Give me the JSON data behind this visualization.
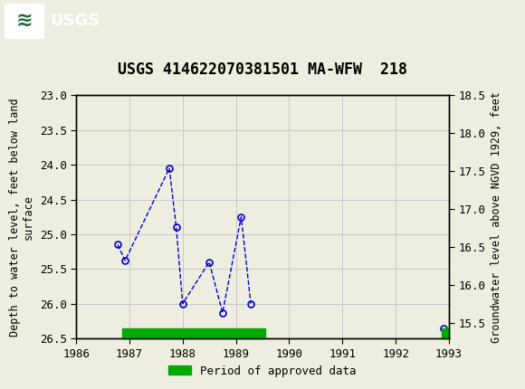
{
  "title": "USGS 414622070381501 MA-WFW  218",
  "ylabel_left": "Depth to water level, feet below land\nsurface",
  "ylabel_right": "Groundwater level above NGVD 1929, feet",
  "background_color": "#eeeee0",
  "header_color": "#1e6b3a",
  "data_x": [
    1986.78,
    1986.92,
    1987.75,
    1987.88,
    1988.0,
    1988.5,
    1988.75,
    1989.1,
    1989.28
  ],
  "data_y": [
    25.15,
    25.38,
    24.05,
    24.9,
    26.0,
    25.4,
    26.13,
    24.75,
    26.0
  ],
  "data_x2": [
    1992.9
  ],
  "data_y2": [
    26.35
  ],
  "ylim_left_top": 23.0,
  "ylim_left_bottom": 26.5,
  "ylim_right_top": 18.5,
  "ylim_right_bottom": 15.3,
  "xlim": [
    1986,
    1993
  ],
  "xticks": [
    1986,
    1987,
    1988,
    1989,
    1990,
    1991,
    1992,
    1993
  ],
  "yticks_left": [
    23.0,
    23.5,
    24.0,
    24.5,
    25.0,
    25.5,
    26.0,
    26.5
  ],
  "yticks_right": [
    18.5,
    18.0,
    17.5,
    17.0,
    16.5,
    16.0,
    15.5
  ],
  "line_color": "#0000cc",
  "marker_color": "#0000cc",
  "green_bar_x1": 1986.87,
  "green_bar_x2": 1989.55,
  "green_bar2_x1": 1992.87,
  "green_bar2_x2": 1993.0,
  "green_color": "#00aa00",
  "title_fontsize": 12,
  "axis_fontsize": 8.5,
  "tick_fontsize": 9,
  "legend_label": "Period of approved data"
}
